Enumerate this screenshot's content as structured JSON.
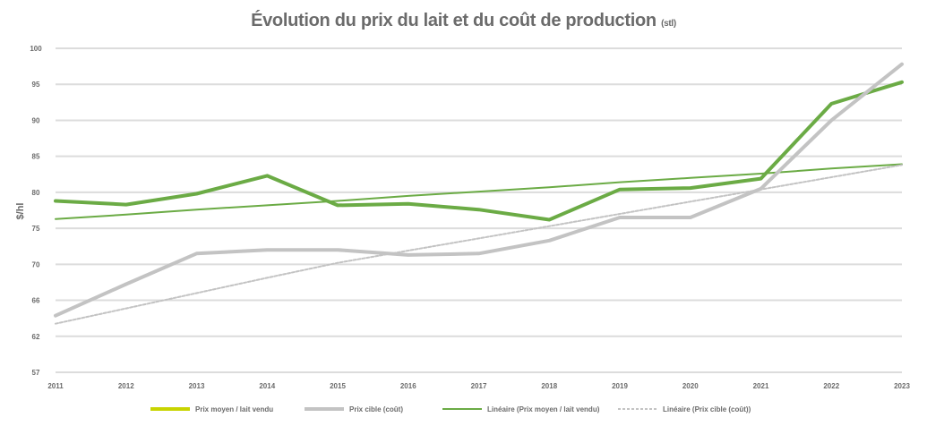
{
  "chart_data": {
    "type": "line",
    "title": "Évolution du prix du lait et du coût de production",
    "title_unit": "(stl)",
    "ylabel": "$/hl",
    "xlabel": "",
    "ylim": [
      57,
      100
    ],
    "yticks": [
      57,
      62,
      66,
      70,
      75,
      80,
      85,
      90,
      95,
      100
    ],
    "ytick_labels": [
      "57",
      "62",
      "66",
      "70",
      "75",
      "80",
      "85",
      "90",
      "95",
      "100"
    ],
    "grid": true,
    "legend_position": "bottom",
    "x": [
      "2011",
      "2012",
      "2013",
      "2014",
      "2015",
      "2016",
      "2017",
      "2018",
      "2019",
      "2020",
      "2021",
      "2022",
      "2023"
    ],
    "series": [
      {
        "name": "Prix moyen / lait vendu",
        "color": "#6bab45",
        "dash": false,
        "values": [
          78.8,
          78.3,
          79.8,
          82.3,
          78.2,
          78.4,
          77.6,
          76.2,
          80.4,
          80.6,
          81.9,
          92.3,
          95.3
        ]
      },
      {
        "name": "Prix cible (coût)",
        "color": "#c3c3c3",
        "dash": false,
        "values": [
          64.3,
          67.8,
          71.5,
          72.0,
          72.0,
          71.3,
          71.5,
          73.3,
          76.5,
          76.5,
          80.5,
          90.0,
          97.8
        ]
      },
      {
        "name": "Linéaire (Prix moyen / lait vendu)",
        "color": "#6bab45",
        "dash": false,
        "trend": true,
        "values": [
          76.3,
          76.9,
          77.6,
          78.2,
          78.8,
          79.5,
          80.1,
          80.7,
          81.4,
          82.0,
          82.6,
          83.3,
          83.9
        ]
      },
      {
        "name": "Linéaire (Prix cible (coût))",
        "color": "#c3c3c3",
        "dash": true,
        "trend": true,
        "values": [
          63.4,
          65.1,
          66.8,
          68.5,
          70.2,
          71.9,
          73.6,
          75.3,
          77.0,
          78.7,
          80.4,
          82.1,
          83.8
        ]
      }
    ]
  },
  "colors": {
    "grid": "#dcdcdc",
    "axis_text": "#6b6b6b",
    "title": "#6b6b6b"
  }
}
